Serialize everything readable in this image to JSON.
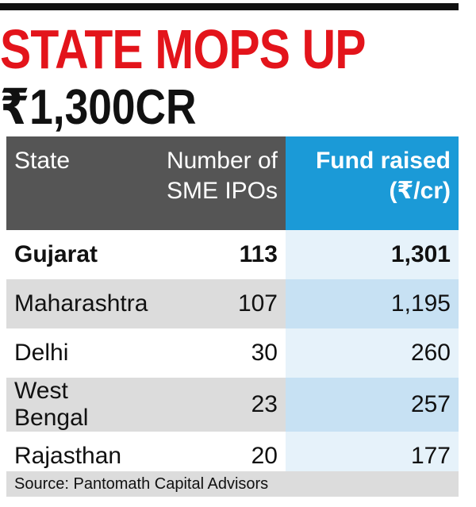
{
  "header": {
    "title": "STATE MOPS UP",
    "subtitle": "₹1,300CR"
  },
  "table": {
    "columns": [
      "State",
      "Number of SME IPOs",
      "Fund raised (₹/cr)"
    ],
    "rows": [
      [
        "Gujarat",
        "113",
        "1,301"
      ],
      [
        "Maharashtra",
        "107",
        "1,195"
      ],
      [
        "Delhi",
        "30",
        "260"
      ],
      [
        "West Bengal",
        "23",
        "257"
      ],
      [
        "Rajasthan",
        "20",
        "177"
      ]
    ]
  },
  "source": "Source: Pantomath Capital Advisors"
}
